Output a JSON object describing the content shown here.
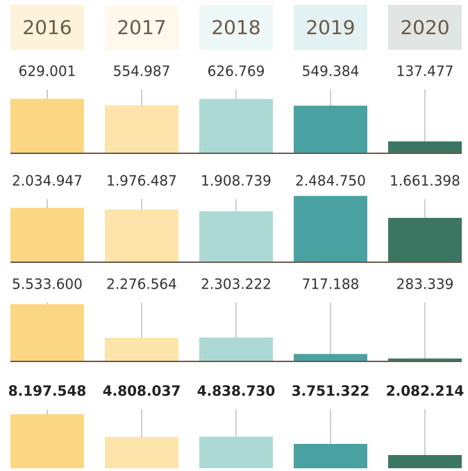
{
  "chart_data": {
    "type": "bar",
    "categories": [
      "2016",
      "2017",
      "2018",
      "2019",
      "2020"
    ],
    "header_colors": [
      "#fdf3da",
      "#fef9ec",
      "#eef8f7",
      "#e2f1f1",
      "#e1e5e3"
    ],
    "colors": [
      "#fcd783",
      "#fce4ab",
      "#acd9d3",
      "#4aa1a2",
      "#3b7663"
    ],
    "series": [
      {
        "values": [
          629001,
          554987,
          626769,
          549384,
          137477
        ],
        "value_labels": [
          "629.001",
          "554.987",
          "626.769",
          "549.384",
          "137.477"
        ],
        "ylim": [
          0,
          800000
        ]
      },
      {
        "values": [
          2034947,
          1976487,
          1908739,
          2484750,
          1661398
        ],
        "value_labels": [
          "2.034.947",
          "1.976.487",
          "1.908.739",
          "2.484.750",
          "1.661.398"
        ],
        "ylim": [
          0,
          2600000
        ]
      },
      {
        "values": [
          5533600,
          2276564,
          2303222,
          717188,
          283339
        ],
        "value_labels": [
          "5.533.600",
          "2.276.564",
          "2.303.222",
          "717.188",
          "283.339"
        ],
        "ylim": [
          0,
          6700000
        ]
      },
      {
        "values": [
          8197548,
          4808037,
          4838730,
          3751322,
          2082214
        ],
        "value_labels": [
          "8.197.548",
          "4.808.037",
          "4.838.730",
          "3.751.322",
          "2.082.214"
        ],
        "ylim": [
          0,
          10400000
        ]
      }
    ]
  }
}
